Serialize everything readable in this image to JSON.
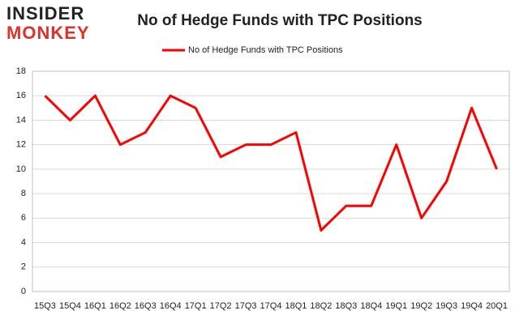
{
  "logo": {
    "line1": "INSIDER",
    "line2": "MONKEY"
  },
  "chart_data": {
    "type": "line",
    "title": "No of Hedge Funds with TPC Positions",
    "categories": [
      "15Q3",
      "15Q4",
      "16Q1",
      "16Q2",
      "16Q3",
      "16Q4",
      "17Q1",
      "17Q2",
      "17Q3",
      "17Q4",
      "18Q1",
      "18Q2",
      "18Q3",
      "18Q4",
      "19Q1",
      "19Q2",
      "19Q3",
      "19Q4",
      "20Q1"
    ],
    "series": [
      {
        "name": "No of Hedge Funds with TPC Positions",
        "color": "#ff0000",
        "values": [
          16,
          14,
          16,
          12,
          13,
          16,
          15,
          11,
          12,
          12,
          13,
          5,
          7,
          7,
          12,
          6,
          9,
          15,
          10
        ]
      }
    ],
    "ylim": [
      0,
      18
    ],
    "yticks": [
      0,
      2,
      4,
      6,
      8,
      10,
      12,
      14,
      16,
      18
    ],
    "grid": true,
    "legend": "top"
  }
}
